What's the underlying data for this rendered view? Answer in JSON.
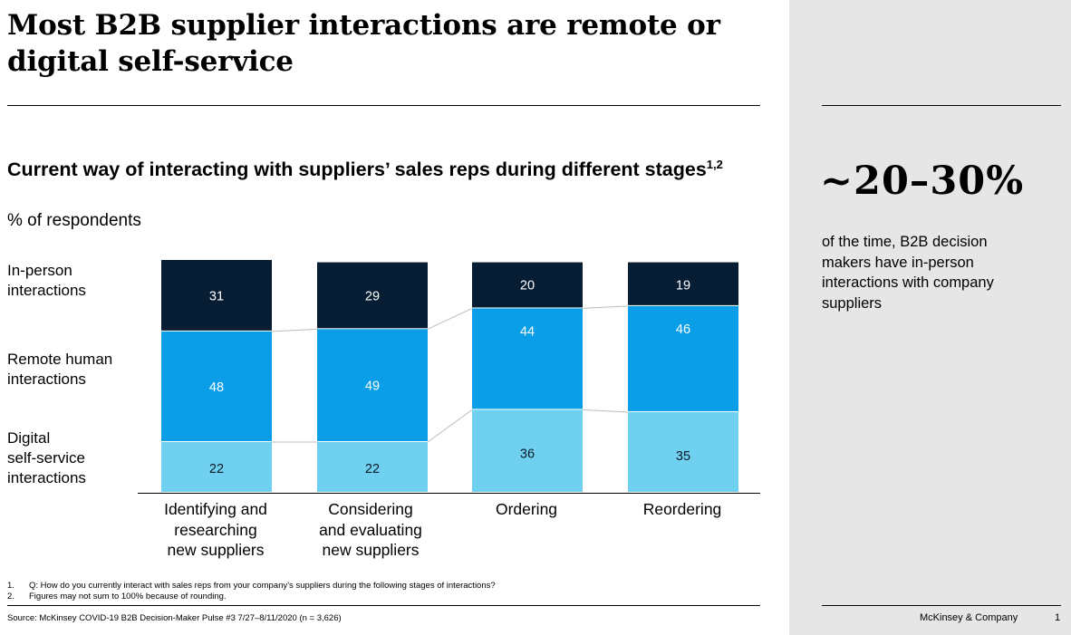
{
  "title": "Most B2B supplier interactions are remote or digital self-service",
  "callout": {
    "value": "~20–30%",
    "text": "of the time, B2B decision makers have in-person interactions with company suppliers"
  },
  "footnotes": [
    {
      "num": "1.",
      "text": "Q: How do you currently interact with sales reps from your company’s suppliers during the following stages of interactions?"
    },
    {
      "num": "2.",
      "text": "Figures may not sum to 100% because of rounding."
    }
  ],
  "source": "Source: McKinsey COVID-19 B2B Decision-Maker Pulse #3 7/27–8/11/2020 (n = 3,626)",
  "brand": "McKinsey & Company",
  "page_number": "1",
  "chart_data": {
    "type": "bar",
    "stacked": true,
    "title": "Current way of interacting with suppliers’ sales reps during different stages",
    "title_superscript": "1,2",
    "subtitle": "% of respondents",
    "categories": [
      "Identifying and\nresearching\nnew suppliers",
      "Considering\nand evaluating\nnew suppliers",
      "Ordering",
      "Reordering"
    ],
    "series": [
      {
        "name": "Digital\nself-service\ninteractions",
        "values": [
          22,
          22,
          36,
          35
        ],
        "color": "#6fd0f0"
      },
      {
        "name": "Remote human\ninteractions",
        "values": [
          48,
          49,
          44,
          46
        ],
        "color": "#0a9ee8"
      },
      {
        "name": "In-person\ninteractions",
        "values": [
          31,
          29,
          20,
          19
        ],
        "color": "#061d33"
      }
    ],
    "connector_color": "#bdbdbd",
    "ylim": [
      0,
      101
    ]
  }
}
